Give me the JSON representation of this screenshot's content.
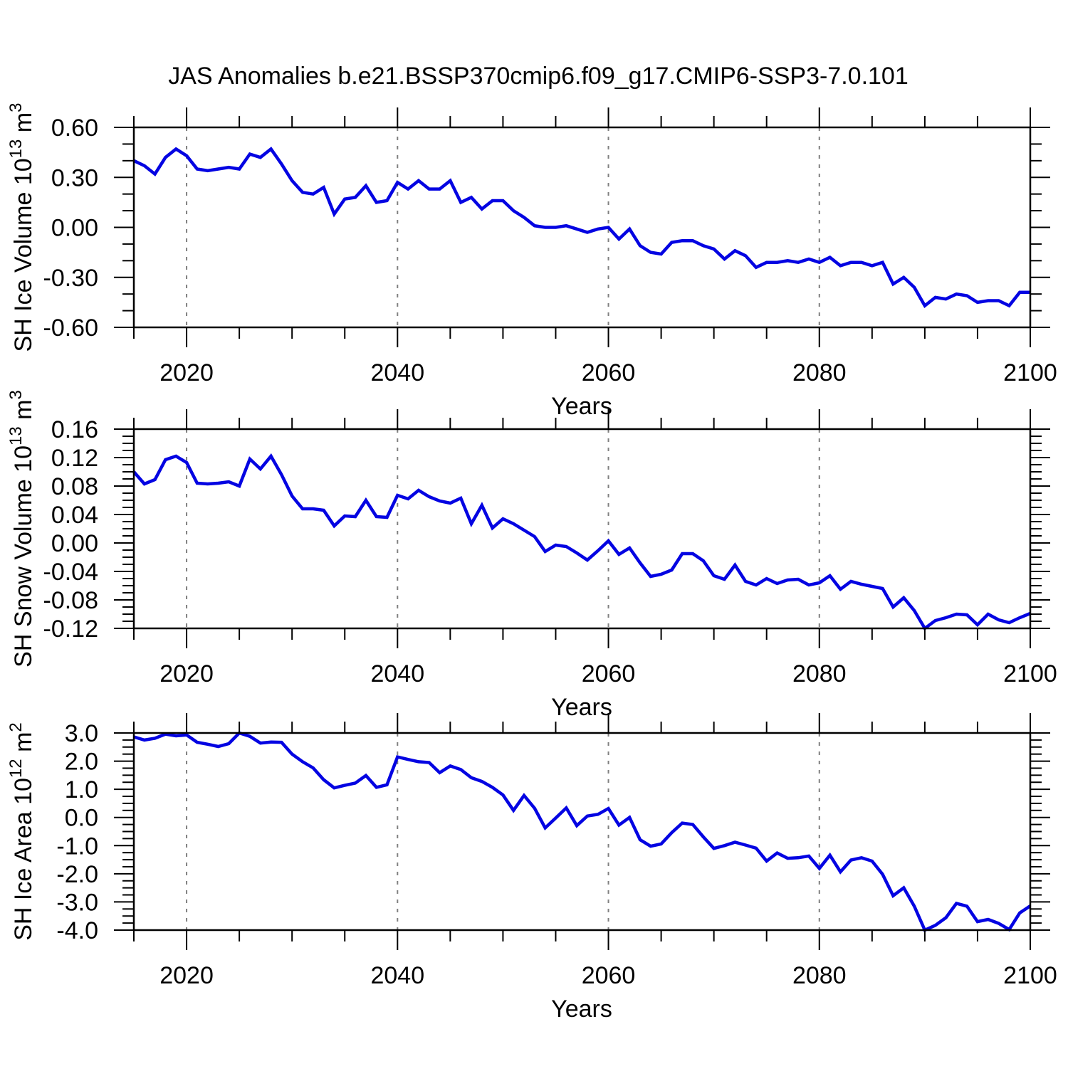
{
  "title": "JAS Anomalies b.e21.BSSP370cmip6.f09_g17.CMIP6-SSP3-7.0.101",
  "line_color": "#0404e2",
  "grid_color": "#808080",
  "frame_color": "#000000",
  "panels": [
    {
      "ylabel_main": "SH Ice Volume 10",
      "ylabel_sup1": "13",
      "ylabel_mid": " m",
      "ylabel_sup2": "3"
    },
    {
      "ylabel_main": "SH Snow Volume 10",
      "ylabel_sup1": "13",
      "ylabel_mid": " m",
      "ylabel_sup2": "3"
    },
    {
      "ylabel_main": "SH Ice Area 10",
      "ylabel_sup1": "12",
      "ylabel_mid": " m",
      "ylabel_sup2": "2"
    }
  ],
  "chart_data": [
    {
      "type": "line",
      "name": "SH Ice Volume anomaly (10^13 m^3)",
      "xlabel": "Years",
      "x_start": 2015,
      "x_end": 2100,
      "x_step": 1,
      "xlim": [
        2015,
        2100
      ],
      "ylim": [
        -0.6,
        0.6
      ],
      "xticks": [
        2020,
        2040,
        2060,
        2080,
        2100
      ],
      "xtick_labels": [
        "2020",
        "2040",
        "2060",
        "2080",
        "2100"
      ],
      "x_minor_step": 5,
      "yticks": [
        0.6,
        0.3,
        0.0,
        -0.3,
        -0.6
      ],
      "ytick_labels": [
        "0.60",
        "0.30",
        "0.00",
        "-0.30",
        "-0.60"
      ],
      "y_minor_step": 0.1,
      "grid_x": [
        2020,
        2040,
        2060,
        2080
      ],
      "grid_on": true,
      "legend": "none",
      "values": [
        0.4,
        0.37,
        0.32,
        0.42,
        0.47,
        0.43,
        0.35,
        0.34,
        0.35,
        0.36,
        0.35,
        0.44,
        0.42,
        0.47,
        0.38,
        0.28,
        0.21,
        0.2,
        0.24,
        0.08,
        0.17,
        0.18,
        0.25,
        0.15,
        0.16,
        0.27,
        0.23,
        0.28,
        0.23,
        0.23,
        0.28,
        0.15,
        0.18,
        0.11,
        0.16,
        0.16,
        0.1,
        0.06,
        0.01,
        0.0,
        0.0,
        0.01,
        -0.01,
        -0.03,
        -0.01,
        0.0,
        -0.07,
        -0.01,
        -0.11,
        -0.15,
        -0.16,
        -0.09,
        -0.08,
        -0.08,
        -0.11,
        -0.13,
        -0.19,
        -0.14,
        -0.17,
        -0.24,
        -0.21,
        -0.21,
        -0.2,
        -0.21,
        -0.19,
        -0.21,
        -0.18,
        -0.23,
        -0.21,
        -0.21,
        -0.23,
        -0.21,
        -0.34,
        -0.3,
        -0.36,
        -0.47,
        -0.42,
        -0.43,
        -0.4,
        -0.41,
        -0.45,
        -0.44,
        -0.44,
        -0.47,
        -0.39,
        -0.39
      ]
    },
    {
      "type": "line",
      "name": "SH Snow Volume anomaly (10^13 m^3)",
      "xlabel": "Years",
      "x_start": 2015,
      "x_end": 2100,
      "x_step": 1,
      "xlim": [
        2015,
        2100
      ],
      "ylim": [
        -0.12,
        0.16
      ],
      "xticks": [
        2020,
        2040,
        2060,
        2080,
        2100
      ],
      "xtick_labels": [
        "2020",
        "2040",
        "2060",
        "2080",
        "2100"
      ],
      "x_minor_step": 5,
      "yticks": [
        0.16,
        0.12,
        0.08,
        0.04,
        0.0,
        -0.04,
        -0.08,
        -0.12
      ],
      "ytick_labels": [
        "0.16",
        "0.12",
        "0.08",
        "0.04",
        "0.00",
        "-0.04",
        "-0.08",
        "-0.12"
      ],
      "y_minor_step": 0.01,
      "grid_x": [
        2020,
        2040,
        2060,
        2080
      ],
      "grid_on": true,
      "legend": "none",
      "values": [
        0.1,
        0.083,
        0.089,
        0.117,
        0.122,
        0.113,
        0.084,
        0.083,
        0.084,
        0.086,
        0.08,
        0.118,
        0.104,
        0.122,
        0.096,
        0.066,
        0.048,
        0.048,
        0.046,
        0.024,
        0.038,
        0.037,
        0.06,
        0.037,
        0.036,
        0.067,
        0.062,
        0.074,
        0.065,
        0.059,
        0.056,
        0.063,
        0.027,
        0.053,
        0.021,
        0.034,
        0.027,
        0.018,
        0.009,
        -0.012,
        -0.003,
        -0.005,
        -0.014,
        -0.024,
        -0.011,
        0.003,
        -0.016,
        -0.007,
        -0.028,
        -0.047,
        -0.044,
        -0.038,
        -0.015,
        -0.015,
        -0.025,
        -0.046,
        -0.051,
        -0.031,
        -0.054,
        -0.059,
        -0.05,
        -0.057,
        -0.052,
        -0.051,
        -0.059,
        -0.056,
        -0.046,
        -0.065,
        -0.054,
        -0.058,
        -0.061,
        -0.064,
        -0.09,
        -0.077,
        -0.095,
        -0.12,
        -0.109,
        -0.105,
        -0.1,
        -0.101,
        -0.115,
        -0.1,
        -0.108,
        -0.112,
        -0.105,
        -0.099
      ]
    },
    {
      "type": "line",
      "name": "SH Ice Area anomaly (10^12 m^2)",
      "xlabel": "Years",
      "x_start": 2015,
      "x_end": 2100,
      "x_step": 1,
      "xlim": [
        2015,
        2100
      ],
      "ylim": [
        -4.0,
        3.0
      ],
      "xticks": [
        2020,
        2040,
        2060,
        2080,
        2100
      ],
      "xtick_labels": [
        "2020",
        "2040",
        "2060",
        "2080",
        "2100"
      ],
      "x_minor_step": 5,
      "yticks": [
        3.0,
        2.0,
        1.0,
        0.0,
        -1.0,
        -2.0,
        -3.0,
        -4.0
      ],
      "ytick_labels": [
        "3.0",
        "2.0",
        "1.0",
        "0.0",
        "-1.0",
        "-2.0",
        "-3.0",
        "-4.0"
      ],
      "y_minor_step": 0.25,
      "grid_x": [
        2020,
        2040,
        2060,
        2080
      ],
      "grid_on": true,
      "legend": "none",
      "values": [
        2.86,
        2.75,
        2.81,
        2.96,
        2.9,
        2.93,
        2.67,
        2.6,
        2.52,
        2.62,
        3.0,
        2.88,
        2.64,
        2.68,
        2.67,
        2.25,
        1.98,
        1.76,
        1.34,
        1.05,
        1.14,
        1.22,
        1.49,
        1.07,
        1.16,
        2.15,
        2.06,
        1.98,
        1.95,
        1.59,
        1.83,
        1.7,
        1.41,
        1.28,
        1.07,
        0.8,
        0.25,
        0.78,
        0.33,
        -0.37,
        -0.02,
        0.34,
        -0.29,
        0.05,
        0.11,
        0.32,
        -0.27,
        0.0,
        -0.79,
        -1.02,
        -0.94,
        -0.54,
        -0.2,
        -0.25,
        -0.69,
        -1.1,
        -1.0,
        -0.88,
        -0.98,
        -1.09,
        -1.55,
        -1.26,
        -1.45,
        -1.43,
        -1.37,
        -1.81,
        -1.34,
        -1.93,
        -1.51,
        -1.43,
        -1.55,
        -2.02,
        -2.78,
        -2.5,
        -3.15,
        -4.0,
        -3.83,
        -3.56,
        -3.05,
        -3.15,
        -3.7,
        -3.62,
        -3.76,
        -3.98,
        -3.39,
        -3.14
      ]
    }
  ]
}
